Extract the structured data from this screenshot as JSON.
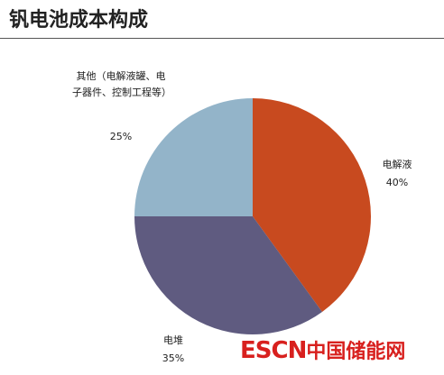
{
  "chart_data": {
    "type": "pie",
    "title": "钒电池成本构成",
    "categories": [
      "电解液",
      "电堆",
      "其他（电解液罐、电子器件、控制工程等）"
    ],
    "values": [
      40,
      35,
      25
    ],
    "value_labels": [
      "40%",
      "35%",
      "25%"
    ],
    "colors": [
      "#c84a1f",
      "#5f5b80",
      "#93b4c9"
    ]
  },
  "watermark": {
    "brand": "ESCN",
    "site": "中国储能网"
  }
}
